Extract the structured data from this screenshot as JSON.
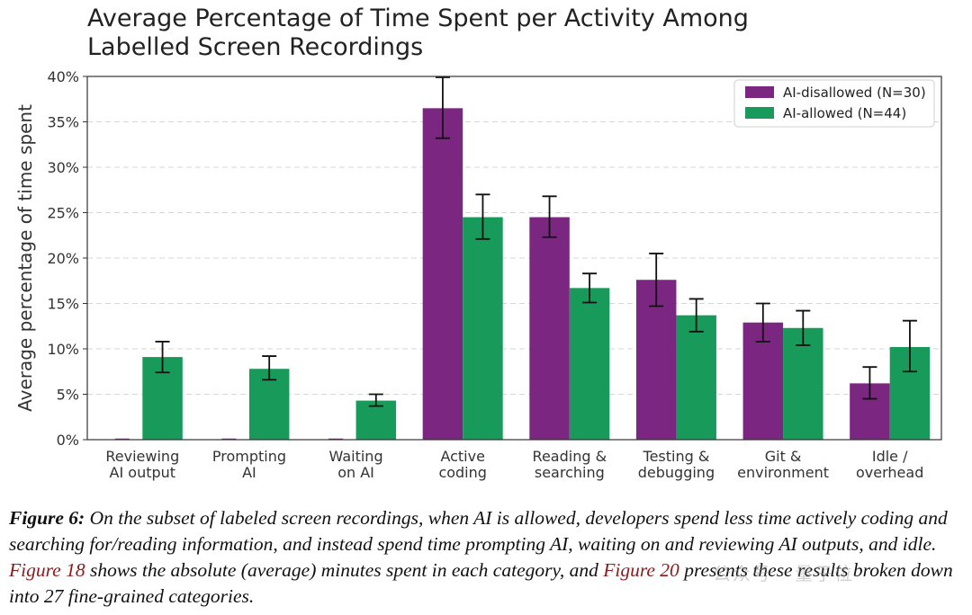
{
  "colors": {
    "disallowed": "#7b2680",
    "allowed": "#189a5a"
  },
  "chart_data": {
    "type": "bar",
    "title_lines": [
      "Average Percentage of Time Spent per Activity Among",
      "Labelled Screen Recordings"
    ],
    "ylabel": "Average percentage of time spent",
    "ylim": [
      0,
      40
    ],
    "yticks": [
      "0%",
      "5%",
      "10%",
      "15%",
      "20%",
      "25%",
      "30%",
      "35%",
      "40%"
    ],
    "grid": "horizontal dashed",
    "legend_position": "top-right",
    "categories": [
      [
        "Reviewing",
        "AI output"
      ],
      [
        "Prompting",
        "AI"
      ],
      [
        "Waiting",
        "on AI"
      ],
      [
        "Active",
        "coding"
      ],
      [
        "Reading &",
        "searching"
      ],
      [
        "Testing &",
        "debugging"
      ],
      [
        "Git &",
        "environment"
      ],
      [
        "Idle /",
        "overhead"
      ]
    ],
    "series": [
      {
        "name": "AI-disallowed (N=30)",
        "values": [
          0,
          0,
          0,
          36.5,
          24.5,
          17.6,
          12.9,
          6.2
        ],
        "err_low": [
          0,
          0,
          0,
          33.2,
          22.3,
          14.7,
          10.8,
          4.5
        ],
        "err_high": [
          0,
          0,
          0,
          39.9,
          26.8,
          20.5,
          15.0,
          8.0
        ]
      },
      {
        "name": "AI-allowed (N=44)",
        "values": [
          9.1,
          7.8,
          4.3,
          24.5,
          16.7,
          13.7,
          12.3,
          10.2
        ],
        "err_low": [
          7.4,
          6.6,
          3.7,
          22.1,
          15.1,
          11.9,
          10.4,
          7.5
        ],
        "err_high": [
          10.8,
          9.2,
          5.0,
          27.0,
          18.3,
          15.5,
          14.2,
          13.1
        ]
      }
    ]
  },
  "caption": {
    "figure_label": "Figure 6:",
    "text_1": " On the subset of labeled screen recordings, when AI is allowed, developers spend less time actively coding and searching for/reading information, and instead spend time prompting AI, waiting on and reviewing AI outputs, and idle. ",
    "ref_1": "Figure 18",
    "text_2": " shows the absolute (average) minutes spent in each category, and ",
    "ref_2": "Figure 20",
    "text_3": " presents these results broken down into 27 fine-grained categories."
  },
  "watermark": "公众号 · 量子位"
}
